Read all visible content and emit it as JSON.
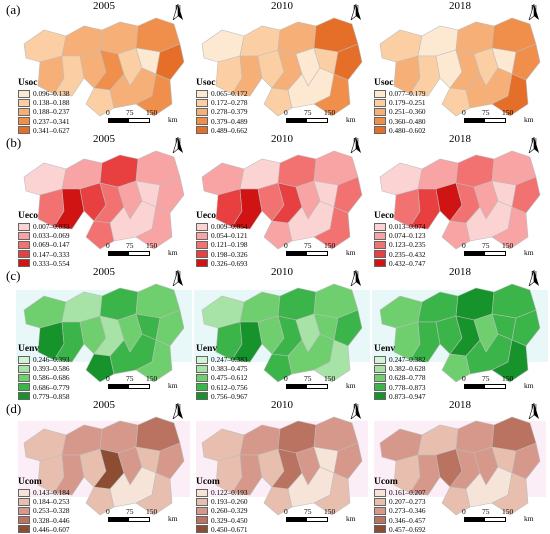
{
  "figure": {
    "scale": {
      "labels": [
        "0",
        "75",
        "150"
      ],
      "unit": "km"
    },
    "north_label": "N",
    "rows": [
      {
        "label": "(a)",
        "indicator": "Usoc",
        "colors": [
          "#fde8d2",
          "#fbcfa3",
          "#f6b077",
          "#f08f4b",
          "#e56f28"
        ],
        "panels": [
          {
            "year": "2005",
            "legend": [
              "0.096–0.138",
              "0.138–0.188",
              "0.188–0.237",
              "0.237–0.341",
              "0.341–0.627"
            ]
          },
          {
            "year": "2010",
            "legend": [
              "0.065–0.172",
              "0.172–0.278",
              "0.278–0.379",
              "0.379–0.489",
              "0.489–0.662"
            ]
          },
          {
            "year": "2018",
            "legend": [
              "0.077–0.179",
              "0.179–0.251",
              "0.251–0.360",
              "0.360–0.480",
              "0.480–0.602"
            ]
          }
        ]
      },
      {
        "label": "(b)",
        "indicator": "Ueco",
        "colors": [
          "#fcd3d3",
          "#f8a4a4",
          "#f27272",
          "#e84040",
          "#d01414"
        ],
        "panels": [
          {
            "year": "2005",
            "legend": [
              "0.007–0.033",
              "0.033–0.069",
              "0.069–0.147",
              "0.147–0.333",
              "0.333–0.554"
            ]
          },
          {
            "year": "2010",
            "legend": [
              "0.009–0.054",
              "0.054–0.121",
              "0.121–0.198",
              "0.198–0.326",
              "0.326–0.693"
            ]
          },
          {
            "year": "2018",
            "legend": [
              "0.013–0.074",
              "0.074–0.123",
              "0.123–0.235",
              "0.235–0.432",
              "0.432–0.747"
            ]
          }
        ]
      },
      {
        "label": "(c)",
        "indicator": "Uenv",
        "colors": [
          "#d4f2d4",
          "#a7e3a7",
          "#6fcf6f",
          "#3bb54a",
          "#16932b"
        ],
        "panels": [
          {
            "year": "2005",
            "legend": [
              "0.246–0.393",
              "0.393–0.586",
              "0.586–0.686",
              "0.686–0.779",
              "0.779–0.858"
            ]
          },
          {
            "year": "2010",
            "legend": [
              "0.247–0.383",
              "0.383–0.475",
              "0.475–0.612",
              "0.612–0.756",
              "0.756–0.967"
            ]
          },
          {
            "year": "2018",
            "legend": [
              "0.247–0.382",
              "0.382–0.628",
              "0.628–0.778",
              "0.778–0.873",
              "0.873–0.947"
            ]
          }
        ]
      },
      {
        "label": "(d)",
        "indicator": "Ucom",
        "colors": [
          "#f6e4d8",
          "#e8bfae",
          "#d6988a",
          "#b97360",
          "#8c4d33"
        ],
        "panels": [
          {
            "year": "2005",
            "legend": [
              "0.143–0.184",
              "0.184–0.253",
              "0.253–0.328",
              "0.328–0.446",
              "0.446–0.607"
            ]
          },
          {
            "year": "2010",
            "legend": [
              "0.122–0.193",
              "0.193–0.260",
              "0.260–0.329",
              "0.329–0.450",
              "0.450–0.671"
            ]
          },
          {
            "year": "2018",
            "legend": [
              "0.161–0.207",
              "0.207–0.273",
              "0.273–0.346",
              "0.346–0.457",
              "0.457–0.692"
            ]
          }
        ]
      }
    ]
  }
}
